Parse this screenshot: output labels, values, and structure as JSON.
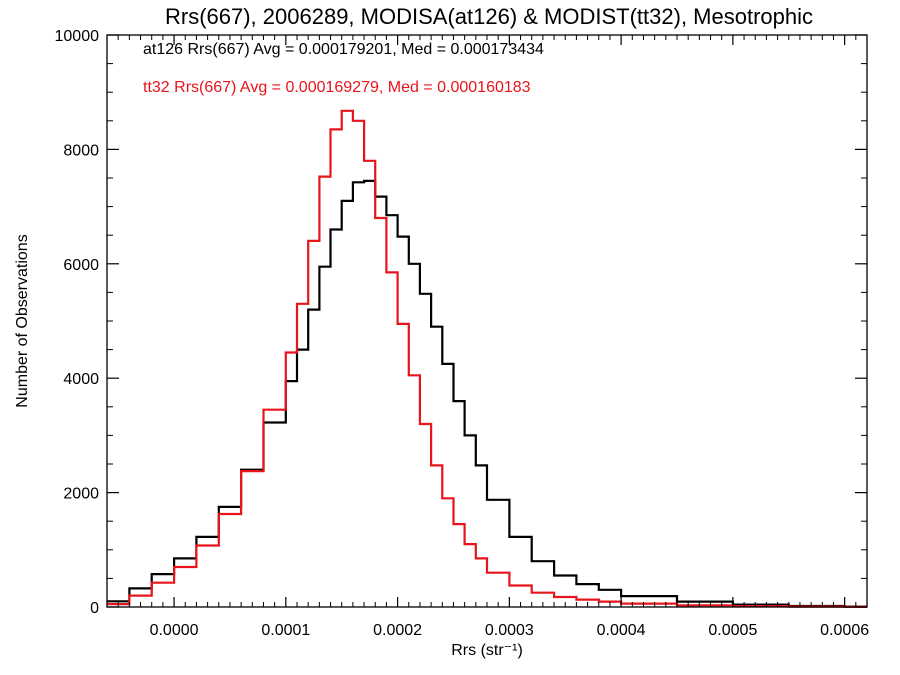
{
  "chart_data": {
    "type": "line",
    "title": "Rrs(667), 2006289, MODISA(at126) & MODIST(tt32), Mesotrophic",
    "xlabel": "Rrs (str⁻¹)",
    "ylabel": "Number of Observations",
    "xlim": [
      -6e-05,
      0.00062
    ],
    "ylim": [
      0,
      10000
    ],
    "x_ticks": [
      0.0,
      0.0001,
      0.0002,
      0.0003,
      0.0004,
      0.0005,
      0.0006
    ],
    "x_tick_labels": [
      "0.0000",
      "0.0001",
      "0.0002",
      "0.0003",
      "0.0004",
      "0.0005",
      "0.0006"
    ],
    "y_ticks": [
      0,
      2000,
      4000,
      6000,
      8000,
      10000
    ],
    "y_tick_labels": [
      "0",
      "2000",
      "4000",
      "6000",
      "8000",
      "10000"
    ],
    "annotations": [
      {
        "text": "at126 Rrs(667) Avg = 0.000179201, Med = 0.000173434",
        "color": "#000000"
      },
      {
        "text": "tt32 Rrs(667) Avg = 0.000169279, Med = 0.000160183",
        "color": "#e8141c"
      }
    ],
    "grid": false,
    "series": [
      {
        "color": "#000000",
        "x": [
          -6e-05,
          -4e-05,
          -2e-05,
          0.0,
          2e-05,
          4e-05,
          6e-05,
          8e-05,
          0.0001,
          0.00011,
          0.00012,
          0.00013,
          0.00014,
          0.00015,
          0.00016,
          0.00017,
          0.00018,
          0.00019,
          0.0002,
          0.00021,
          0.00022,
          0.00023,
          0.00024,
          0.00025,
          0.00026,
          0.00027,
          0.00028,
          0.0003,
          0.00032,
          0.00034,
          0.00036,
          0.00038,
          0.0004,
          0.00045,
          0.0005,
          0.00055,
          0.0006,
          0.00062
        ],
        "y": [
          0,
          200,
          450,
          700,
          1000,
          1450,
          2050,
          2750,
          3700,
          4200,
          4800,
          5600,
          6300,
          6900,
          7300,
          7550,
          7350,
          7000,
          6700,
          6250,
          5750,
          5200,
          4600,
          3900,
          3300,
          2700,
          2250,
          1500,
          950,
          650,
          450,
          350,
          250,
          130,
          60,
          25,
          10,
          5
        ]
      },
      {
        "color": "#e8141c",
        "x": [
          -6e-05,
          -4e-05,
          -2e-05,
          0.0,
          2e-05,
          4e-05,
          6e-05,
          8e-05,
          0.0001,
          0.00011,
          0.00012,
          0.00013,
          0.00014,
          0.00015,
          0.00016,
          0.00017,
          0.00018,
          0.00019,
          0.0002,
          0.00021,
          0.00022,
          0.00023,
          0.00024,
          0.00025,
          0.00026,
          0.00027,
          0.00028,
          0.0003,
          0.00032,
          0.00034,
          0.00036,
          0.00038,
          0.0004,
          0.00045,
          0.0005,
          0.00055,
          0.0006,
          0.00062
        ],
        "y": [
          0,
          100,
          300,
          550,
          850,
          1300,
          1950,
          2800,
          4100,
          4800,
          5800,
          7000,
          8050,
          8650,
          8700,
          8300,
          7300,
          6300,
          5400,
          4500,
          3600,
          2800,
          2150,
          1650,
          1250,
          950,
          750,
          450,
          300,
          200,
          150,
          110,
          80,
          40,
          20,
          10,
          5,
          3
        ]
      }
    ]
  }
}
